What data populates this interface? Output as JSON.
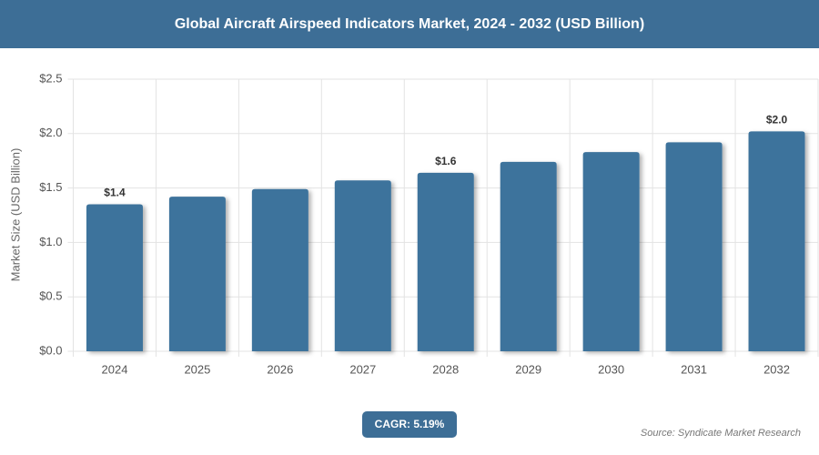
{
  "chart_data": {
    "type": "bar",
    "title": "Global Aircraft Airspeed Indicators Market, 2024 - 2032 (USD Billion)",
    "y_label": "Market Size (USD Billion)",
    "categories": [
      "2024",
      "2025",
      "2026",
      "2027",
      "2028",
      "2029",
      "2030",
      "2031",
      "2032"
    ],
    "values": [
      1.35,
      1.42,
      1.49,
      1.57,
      1.64,
      1.74,
      1.83,
      1.92,
      2.02
    ],
    "value_labels": [
      "$1.4",
      null,
      null,
      null,
      "$1.6",
      null,
      null,
      null,
      "$2.0"
    ],
    "color": "#3e739c",
    "ylim": [
      0,
      2.5
    ],
    "yticks": [
      {
        "value": 0,
        "label": "$0.0"
      },
      {
        "value": 0.5,
        "label": "$0.5"
      },
      {
        "value": 1,
        "label": "$1.0"
      },
      {
        "value": 1.5,
        "label": "$1.5"
      },
      {
        "value": 2,
        "label": "$2.0"
      },
      {
        "value": 2.5,
        "label": "$2.5"
      }
    ],
    "grid": true,
    "annotation": "CAGR: 5.19%",
    "source": "Source: Syndicate Market Research"
  }
}
